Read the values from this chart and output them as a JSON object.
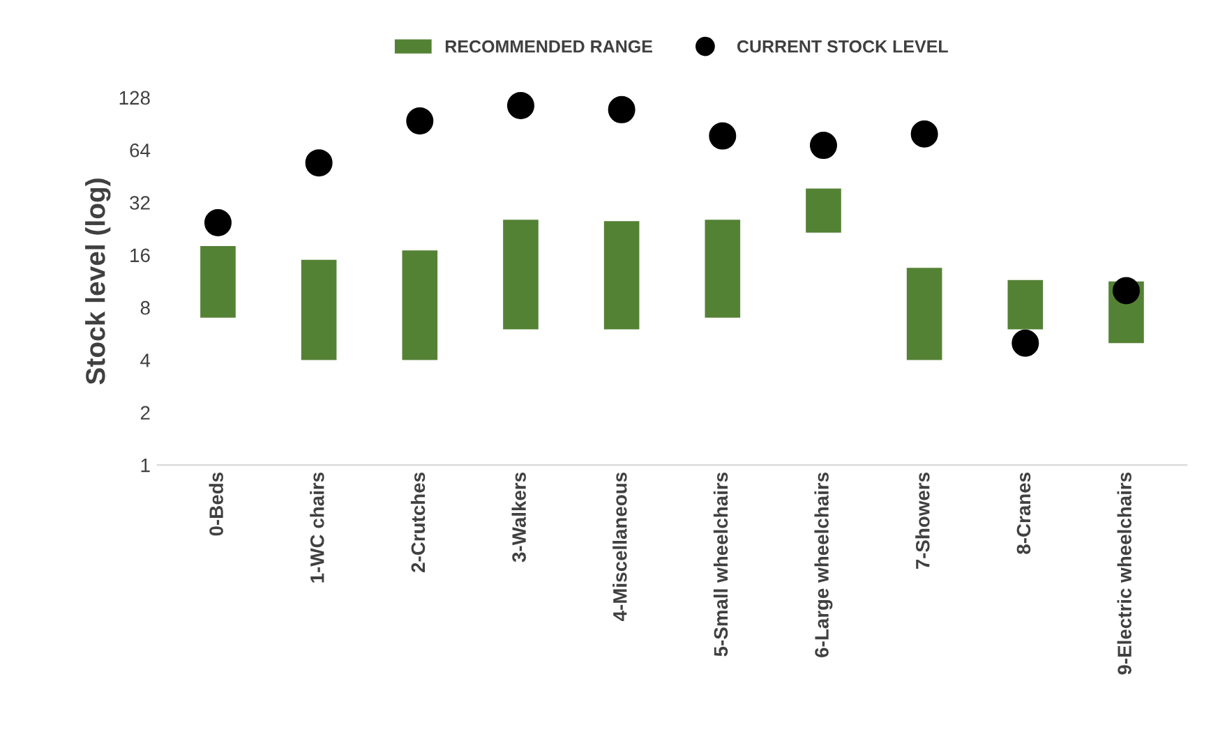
{
  "chart_data": {
    "type": "bar",
    "ylabel": "Stock level (log)",
    "categories": [
      "0-Beds",
      "1-WC chairs",
      "2-Crutches",
      "3-Walkers",
      "4-Miscellaneous",
      "5-Small wheelchairs",
      "6-Large wheelchairs",
      "7-Showers",
      "8-Cranes",
      "9-Electric wheelchairs"
    ],
    "series": [
      {
        "name": "RECOMMENDED RANGE",
        "color": "#548235",
        "base": [
          7,
          4,
          4,
          6,
          6,
          7,
          21.5,
          4,
          6,
          5
        ],
        "values": [
          11,
          11,
          13,
          19.5,
          19,
          18.5,
          17,
          9.5,
          5.5,
          6.3
        ]
      },
      {
        "name": "CURRENT STOCK LEVEL",
        "type": "scatter",
        "color": "#000000",
        "marker": "circle",
        "values": [
          24.5,
          54,
          94,
          115,
          109,
          77,
          68,
          79,
          5,
          10
        ]
      }
    ],
    "log": true,
    "ylim": [
      1,
      128
    ],
    "yticks": [
      1,
      2,
      4,
      8,
      16,
      32,
      64,
      128
    ],
    "grid": false,
    "legend": "top"
  }
}
